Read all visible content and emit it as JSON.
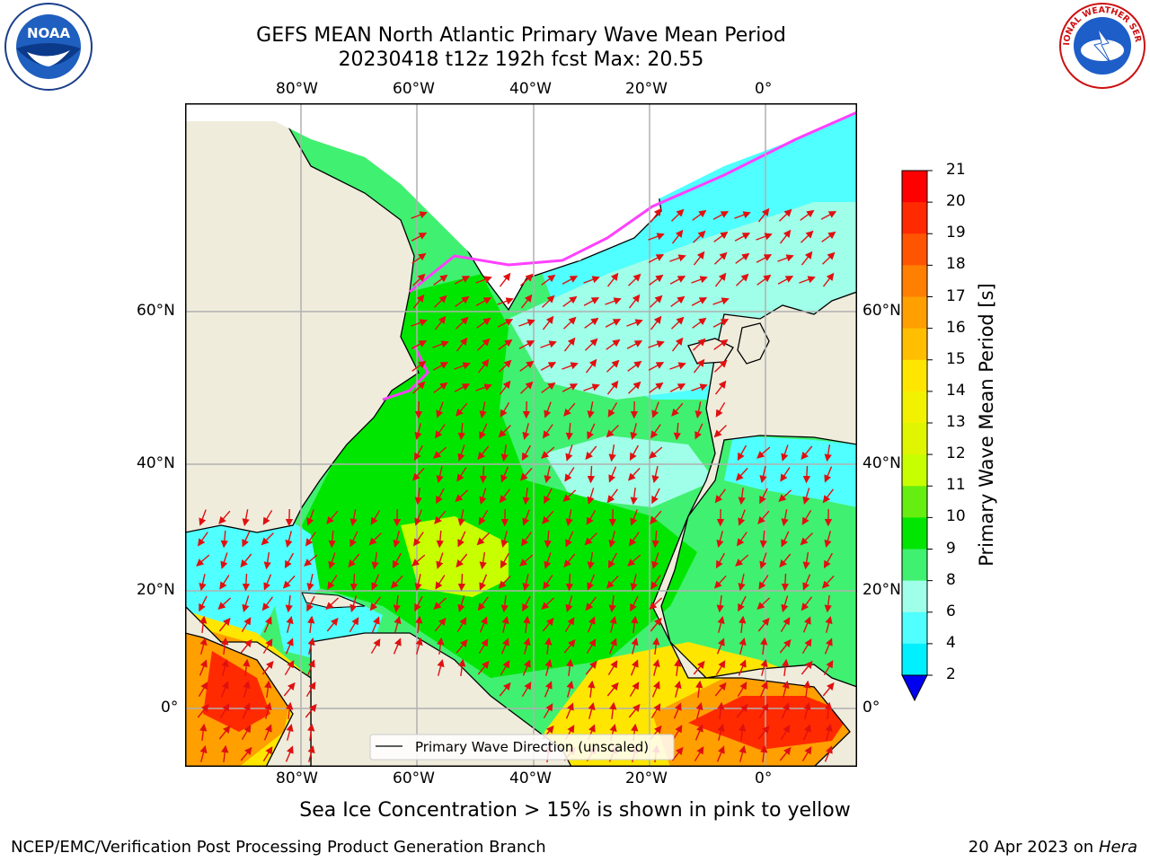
{
  "header": {
    "title_line1": "GEFS MEAN North Atlantic Primary Wave Mean Period",
    "title_line2": "20230418 t12z 192h fcst   Max: 20.55"
  },
  "map": {
    "lon_labels_top": [
      "80°W",
      "60°W",
      "40°W",
      "20°W",
      "0°"
    ],
    "lon_labels_bottom": [
      "80°W",
      "60°W",
      "40°W",
      "20°W",
      "0°"
    ],
    "lat_labels_left": [
      "60°N",
      "40°N",
      "20°N",
      "0°"
    ],
    "lat_labels_right": [
      "60°N",
      "40°N",
      "20°N",
      "0°"
    ],
    "legend_label": "Primary Wave Direction (unscaled)",
    "colors": {
      "land": "#efecdc",
      "ice": "#ffffff",
      "arrow": "#e01010",
      "grid": "#b0b0b0"
    }
  },
  "colorbar": {
    "label": "Primary Wave Mean Period [s]",
    "ticks": [
      "21",
      "20",
      "19",
      "18",
      "17",
      "16",
      "15",
      "14",
      "13",
      "12",
      "11",
      "10",
      "9",
      "8",
      "6",
      "4",
      "2"
    ],
    "colors": [
      "#ff0000",
      "#ff2a00",
      "#ff5500",
      "#ff7f00",
      "#ff9f00",
      "#ffbf00",
      "#ffe600",
      "#f2f200",
      "#e0f500",
      "#c8ff00",
      "#66ee11",
      "#00e600",
      "#40f070",
      "#a0ffe8",
      "#50ffff",
      "#00f0ff",
      "#00b4ff",
      "#0070ff",
      "#0000f0"
    ]
  },
  "notes": {
    "sea_ice": "Sea Ice Concentration > 15% is shown in pink to yellow"
  },
  "footer": {
    "left": "NCEP/EMC/Verification Post Processing Product Generation Branch",
    "right_date": "20 Apr 2023 on ",
    "right_machine": "Hera"
  },
  "logos": {
    "noaa": "NOAA",
    "nws": "NATIONAL WEATHER SERVICE"
  }
}
